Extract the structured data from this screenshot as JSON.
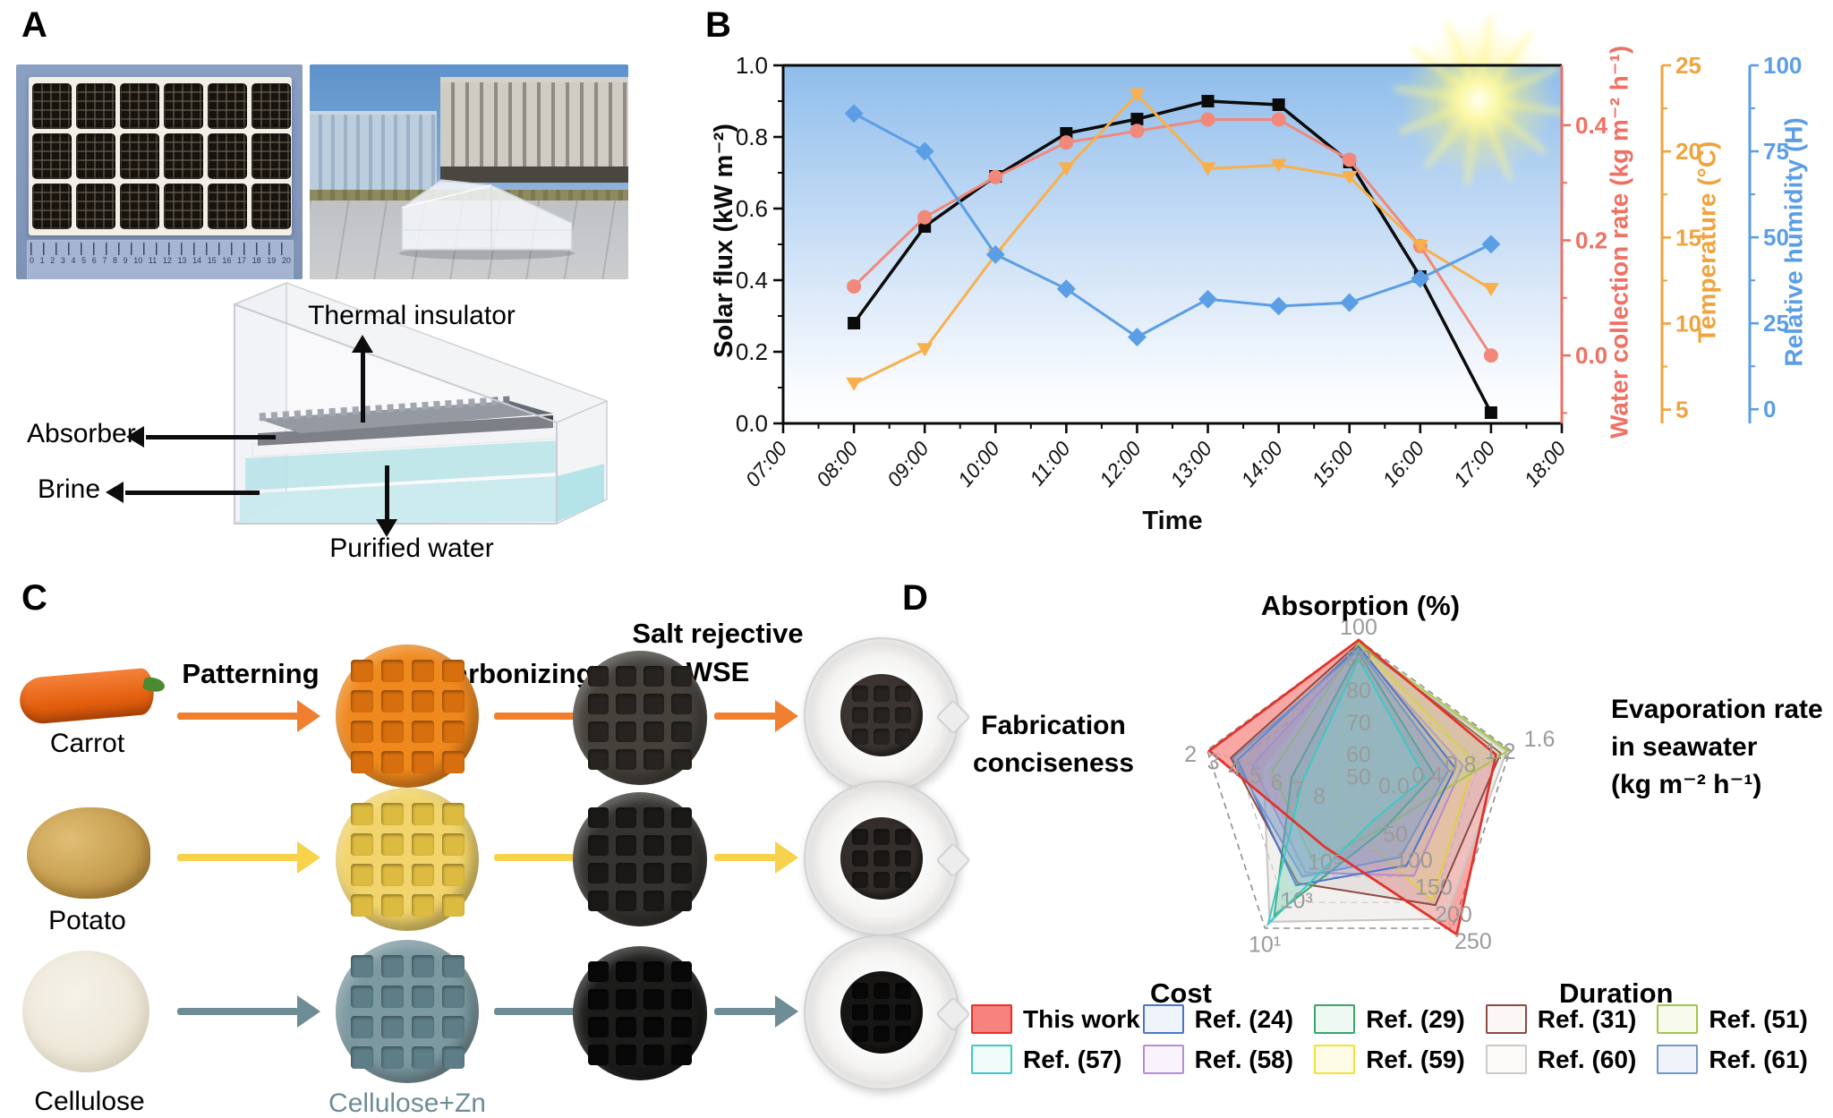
{
  "panel_labels": {
    "a": "A",
    "b": "B",
    "c": "C",
    "d": "D"
  },
  "panel_a": {
    "labels": {
      "thermal_insulator": "Thermal insulator",
      "absorber": "Absorber",
      "brine": "Brine",
      "purified_water": "Purified water"
    },
    "ruler_max_cm": 20
  },
  "panel_c": {
    "step_color": "#F4534E",
    "steps": {
      "patterning": "Patterning",
      "carbonizing": "Carbonizing",
      "salt_rejective_1": "Salt rejective",
      "salt_rejective_2": "WSE"
    },
    "rows": [
      {
        "source_label": "Carrot",
        "arrow_color": "#F08030",
        "patterned_color": "#F0891D",
        "patterned_cell": "#D76F0E",
        "carbon_color": "#45413B",
        "carbon_cell": "#262320",
        "dish_core": "#3B3431"
      },
      {
        "source_label": "Potato",
        "arrow_color": "#F7D24B",
        "patterned_color": "#F1D46B",
        "patterned_cell": "#DDBA40",
        "carbon_color": "#35332F",
        "carbon_cell": "#1A1917",
        "dish_core": "#342E2B"
      },
      {
        "source_label": "Cellulose",
        "patterned_label": "Cellulose+Zn",
        "arrow_color": "#6E8C96",
        "patterned_color": "#7C99A1",
        "patterned_cell": "#5D7D87",
        "carbon_color": "#1C1C1B",
        "carbon_cell": "#080808",
        "dish_core": "#181614"
      }
    ]
  },
  "panel_d": {
    "titles": {
      "absorption": "Absorption (%)",
      "evap_1": "Evaporation rate",
      "evap_2": "in seawater",
      "evap_3": "(kg m⁻² h⁻¹)",
      "duration": "Duration",
      "cost": "Cost",
      "fab_1": "Fabrication",
      "fab_2": "conciseness"
    }
  },
  "legend": {
    "rows": [
      [
        {
          "label": "This work",
          "border": "#E2322C",
          "fill": "#F8827C"
        },
        {
          "label": "Ref. (24)",
          "border": "#4A76C9",
          "fill": "#EFF4FB"
        },
        {
          "label": "Ref. (29)",
          "border": "#3BA56E",
          "fill": "#EFF9F3"
        },
        {
          "label": "Ref. (31)",
          "border": "#8C4A42",
          "fill": "#FBF7F6"
        },
        {
          "label": "Ref. (51)",
          "border": "#A4C64A",
          "fill": "#F7FAEC"
        }
      ],
      [
        {
          "label": "Ref. (57)",
          "border": "#3EC8C4",
          "fill": "#F1FBFA"
        },
        {
          "label": "Ref. (58)",
          "border": "#B48CD9",
          "fill": "#F8F3FC"
        },
        {
          "label": "Ref. (59)",
          "border": "#EFE23C",
          "fill": "#FDFBE5"
        },
        {
          "label": "Ref. (60)",
          "border": "#CDC9C6",
          "fill": "#FCFBFA"
        },
        {
          "label": "Ref. (61)",
          "border": "#7296C8",
          "fill": "#F0F4FA"
        }
      ]
    ]
  },
  "chart_data": [
    {
      "type": "line",
      "panel": "B",
      "sun_icon": "sun-icon",
      "x": [
        "08:00",
        "09:00",
        "10:00",
        "11:00",
        "12:00",
        "13:00",
        "14:00",
        "15:00",
        "16:00",
        "17:00"
      ],
      "x_axis": {
        "label": "Time",
        "ticks": [
          "07:00",
          "08:00",
          "09:00",
          "10:00",
          "11:00",
          "12:00",
          "13:00",
          "14:00",
          "15:00",
          "16:00",
          "17:00",
          "18:00"
        ]
      },
      "axes": {
        "left": {
          "label": "Solar flux (kW m⁻²)",
          "color": "#0B0B0B",
          "min": 0,
          "max": 1,
          "ticks": [
            0,
            0.2,
            0.4,
            0.6,
            0.8,
            1
          ],
          "decimals": 1
        },
        "water": {
          "label": "Water collection rate (kg m⁻² h⁻¹)",
          "color": "#EE7164",
          "min": -0.118,
          "max": 0.504,
          "ticks": [
            0,
            0.2,
            0.4
          ],
          "decimals": 1
        },
        "temp": {
          "label": "Temperature (°C)",
          "color": "#EFA43E",
          "min": 4.2,
          "max": 25,
          "ticks": [
            5,
            10,
            15,
            20,
            25
          ],
          "decimals": 0
        },
        "humidity": {
          "label": "Relative humidity (H)",
          "color": "#5B9EE5",
          "min": -4.1,
          "max": 100,
          "ticks": [
            0,
            25,
            50,
            75,
            100
          ],
          "decimals": 0
        }
      },
      "series": [
        {
          "name": "Solar flux",
          "axis": "left",
          "marker": "square",
          "color": "#0B0B0B",
          "values": [
            0.28,
            0.55,
            0.69,
            0.81,
            0.85,
            0.9,
            0.89,
            0.73,
            0.41,
            0.03
          ]
        },
        {
          "name": "Water collection rate",
          "axis": "water",
          "marker": "circle",
          "color": "#F1887A",
          "values": [
            0.12,
            0.24,
            0.31,
            0.37,
            0.39,
            0.41,
            0.41,
            0.34,
            0.19,
            0
          ]
        },
        {
          "name": "Temperature",
          "axis": "temp",
          "marker": "triangle-down",
          "color": "#F8B04C",
          "values": [
            6.5,
            8.5,
            14,
            19,
            23.3,
            19,
            19.2,
            18.5,
            14.5,
            12
          ]
        },
        {
          "name": "Relative humidity",
          "axis": "humidity",
          "marker": "diamond",
          "color": "#5B9EE5",
          "values": [
            86,
            75,
            45,
            35,
            21,
            32,
            30,
            31,
            38,
            48
          ]
        }
      ]
    },
    {
      "type": "radar",
      "panel": "D",
      "axes": [
        {
          "name": "Absorption (%)",
          "min": 50,
          "max": 100,
          "ticks": [
            {
              "t": "100",
              "f": 1
            },
            {
              "t": "90",
              "f": 0.8
            },
            {
              "t": "80",
              "f": 0.6
            },
            {
              "t": "70",
              "f": 0.4
            },
            {
              "t": "60",
              "f": 0.2
            },
            {
              "t": "50",
              "f": 0.06
            }
          ]
        },
        {
          "name": "Evaporation rate in seawater (kg m⁻² h⁻¹)",
          "min": 0,
          "max": 1.6,
          "ticks": [
            {
              "t": "1.6",
              "f": 1.04
            },
            {
              "t": "1.2",
              "f": 0.78
            },
            {
              "t": "0.8",
              "f": 0.52
            },
            {
              "t": "0.4",
              "f": 0.3
            },
            {
              "t": "0.0",
              "f": 0.08
            }
          ]
        },
        {
          "name": "Duration",
          "min": 0,
          "max": 250,
          "ticks": [
            {
              "t": "250",
              "f": 1.05
            },
            {
              "t": "200",
              "f": 0.84
            },
            {
              "t": "150",
              "f": 0.63
            },
            {
              "t": "100",
              "f": 0.42
            },
            {
              "t": "50",
              "f": 0.22
            }
          ]
        },
        {
          "name": "Cost",
          "scale": "log10",
          "min": 7,
          "max": 1,
          "ticks": [
            {
              "t": "10¹",
              "f": 1.06
            },
            {
              "t": "10³",
              "f": 0.72
            },
            {
              "t": "10⁵",
              "f": 0.42
            }
          ]
        },
        {
          "name": "Fabrication conciseness",
          "min": 9,
          "max": 2,
          "ticks": [
            {
              "t": "2",
              "f": 1.05
            },
            {
              "t": "3",
              "f": 0.9
            },
            {
              "t": "4",
              "f": 0.76
            },
            {
              "t": "5",
              "f": 0.62
            },
            {
              "t": "6",
              "f": 0.48
            },
            {
              "t": "7",
              "f": 0.34
            },
            {
              "t": "8",
              "f": 0.2
            }
          ]
        }
      ],
      "series": [
        {
          "name": "This work",
          "color": "#E2322C",
          "fill": "rgba(244,80,74,0.5)",
          "values": [
            100,
            1.45,
            262,
            4.8,
            2.1
          ]
        },
        {
          "name": "Ref. (60)",
          "color": "#C9C5C1",
          "fill": "rgba(226,223,219,0.45)",
          "values": [
            98,
            1.56,
            232,
            1.3,
            4.6
          ]
        },
        {
          "name": "Ref. (59)",
          "color": "#E8DC30",
          "fill": "rgba(240,230,120,0.3)",
          "values": [
            99,
            1.22,
            196,
            6,
            7.8
          ]
        },
        {
          "name": "Ref. (58)",
          "color": "#B48CD9",
          "fill": "rgba(185,155,220,0.22)",
          "values": [
            97,
            1.1,
            148,
            3.6,
            4.1
          ]
        },
        {
          "name": "Ref. (31)",
          "color": "#8C4A42",
          "fill": "rgba(175,150,150,0.18)",
          "values": [
            99,
            1.5,
            205,
            3.1,
            3.1
          ]
        },
        {
          "name": "Ref. (51)",
          "color": "#A4C64A",
          "fill": "rgba(185,215,130,0.25)",
          "values": [
            99,
            1.58,
            58,
            4.1,
            5
          ]
        },
        {
          "name": "Ref. (29)",
          "color": "#3BA56E",
          "fill": "rgba(110,190,150,0.28)",
          "values": [
            96,
            0.8,
            62,
            1.6,
            5.9
          ]
        },
        {
          "name": "Ref. (24)",
          "color": "#4A76C9",
          "fill": "rgba(108,140,205,0.2)",
          "values": [
            98,
            1.02,
            128,
            3,
            3.4
          ]
        },
        {
          "name": "Ref. (61)",
          "color": "#7296C8",
          "fill": "rgba(130,160,205,0.4)",
          "values": [
            97,
            0.95,
            112,
            3.4,
            3.2
          ]
        },
        {
          "name": "Ref. (57)",
          "color": "#3EC8C4",
          "fill": "rgba(140,225,220,0.2)",
          "values": [
            94,
            0.7,
            40,
            1.2,
            6.4
          ]
        }
      ]
    }
  ]
}
